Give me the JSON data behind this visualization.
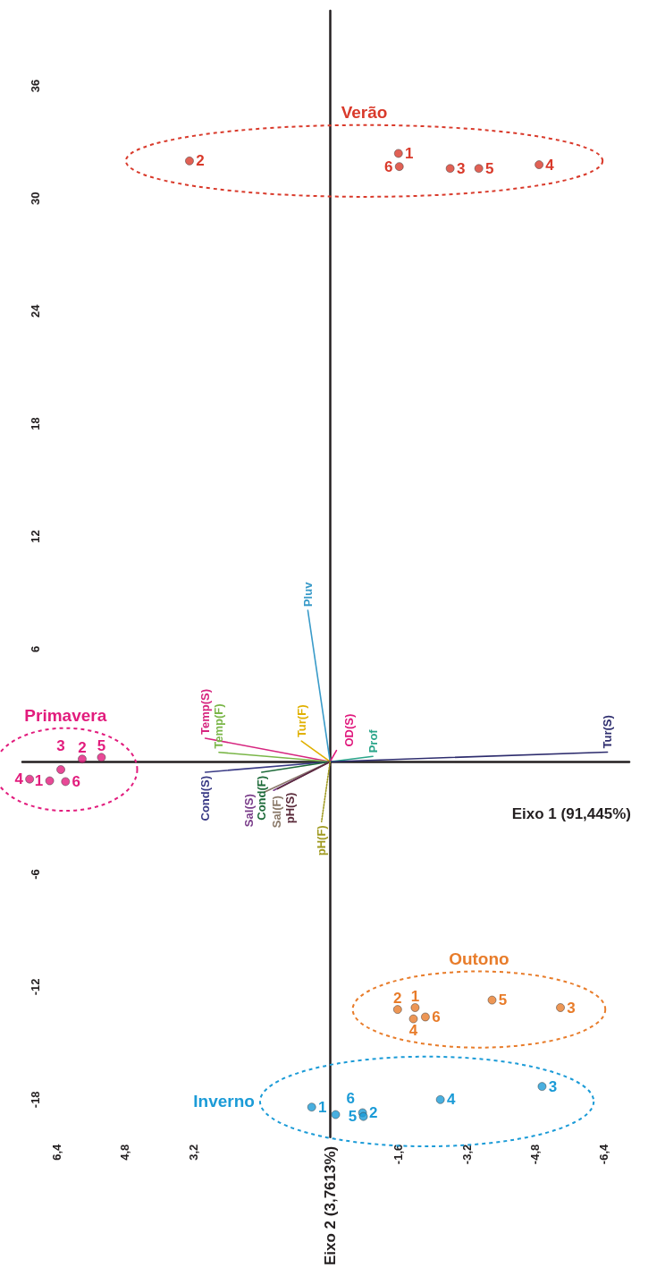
{
  "chart_data": {
    "type": "scatter",
    "xlabel": "Eixo 1 (91,445%)",
    "ylabel": "Eixo 2 (3,7613%)",
    "xlim": [
      7.2,
      -7
    ],
    "ylim": [
      -20,
      40
    ],
    "xticks": [
      {
        "value": 6.4,
        "label": "6,4"
      },
      {
        "value": 4.8,
        "label": "4,8"
      },
      {
        "value": 3.2,
        "label": "3,2"
      },
      {
        "value": -1.6,
        "label": "-1,6"
      },
      {
        "value": -3.2,
        "label": "-3,2"
      },
      {
        "value": -4.8,
        "label": "-4,8"
      },
      {
        "value": -6.4,
        "label": "-6,4"
      }
    ],
    "yticks": [
      -18,
      -12,
      -6,
      6,
      12,
      18,
      24,
      30,
      36
    ],
    "grid": false,
    "legend": false,
    "series": [
      {
        "name": "Verão",
        "color": "#d93a2b",
        "marker": "circle",
        "x": [
          -1.6,
          3.29,
          -2.81,
          -4.89,
          -3.48,
          -1.62
        ],
        "values": [
          32.4,
          32.0,
          31.6,
          31.8,
          31.6,
          31.7
        ]
      },
      {
        "name": "Primavera",
        "color": "#e21c7d",
        "marker": "circle",
        "x": [
          6.56,
          5.8,
          6.3,
          7.03,
          5.35,
          6.19
        ],
        "values": [
          -1.02,
          0.14,
          -0.42,
          -0.93,
          0.23,
          -1.06
        ]
      },
      {
        "name": "Outono",
        "color": "#e87c2a",
        "marker": "circle",
        "x": [
          -1.99,
          -1.58,
          -5.39,
          -1.95,
          -3.79,
          -2.23
        ],
        "values": [
          -13.1,
          -13.2,
          -13.1,
          -13.7,
          -12.7,
          -13.6
        ]
      },
      {
        "name": "Inverno",
        "color": "#1b9bd7",
        "marker": "circle",
        "x": [
          0.43,
          -0.76,
          -4.96,
          -2.58,
          -0.78,
          -0.13
        ],
        "values": [
          -18.4,
          -18.7,
          -17.3,
          -18.0,
          -18.9,
          -18.8
        ]
      },
      {
        "type": "line",
        "name": "Pluv",
        "color": "#3a9bc9",
        "marker": "none",
        "x": [
          0,
          0.52
        ],
        "values": [
          0,
          8.06
        ]
      },
      {
        "type": "line",
        "name": "Temp(S)",
        "color": "#d6257f",
        "marker": "none",
        "x": [
          0,
          2.92
        ],
        "values": [
          0,
          1.25
        ]
      },
      {
        "type": "line",
        "name": "Temp(F)",
        "color": "#7ab648",
        "marker": "none",
        "x": [
          0,
          2.6
        ],
        "values": [
          0,
          0.5
        ]
      },
      {
        "type": "line",
        "name": "Tur(F)",
        "color": "#e0b000",
        "marker": "none",
        "x": [
          0,
          0.67
        ],
        "values": [
          0,
          1.1
        ]
      },
      {
        "type": "line",
        "name": "OD(S)",
        "color": "#e0197d",
        "marker": "none",
        "x": [
          0,
          -0.15
        ],
        "values": [
          0,
          0.6
        ]
      },
      {
        "type": "line",
        "name": "Prof",
        "color": "#2aa58a",
        "marker": "none",
        "x": [
          0,
          -1.0
        ],
        "values": [
          0,
          0.28
        ]
      },
      {
        "type": "line",
        "name": "Tur(S)",
        "color": "#2e2d6e",
        "marker": "none",
        "x": [
          0,
          -6.49
        ],
        "values": [
          0,
          0.51
        ]
      },
      {
        "type": "line",
        "name": "Cond(S)",
        "color": "#393a85",
        "marker": "none",
        "x": [
          0,
          2.92
        ],
        "values": [
          0,
          -0.56
        ]
      },
      {
        "type": "line",
        "name": "Cond(F)",
        "color": "#1e6b3a",
        "marker": "none",
        "x": [
          0,
          1.6
        ],
        "values": [
          0,
          -0.56
        ]
      },
      {
        "type": "line",
        "name": "Sal(F)",
        "color": "#8b7a6a",
        "marker": "none",
        "x": [
          0,
          1.54
        ],
        "values": [
          0,
          -1.62
        ]
      },
      {
        "type": "line",
        "name": "Sal(S)",
        "color": "#7a3d8a",
        "marker": "none",
        "x": [
          0,
          1.32
        ],
        "values": [
          0,
          -1.53
        ]
      },
      {
        "type": "line",
        "name": "pH(S)",
        "color": "#5a2a3a",
        "marker": "none",
        "x": [
          0,
          1.23
        ],
        "values": [
          0,
          -1.45
        ]
      },
      {
        "type": "line",
        "name": "pH(F)",
        "color": "#a09a20",
        "marker": "none",
        "line_style": "dotted",
        "x": [
          0,
          0.2
        ],
        "values": [
          0,
          -3.2
        ]
      }
    ],
    "annotations": [
      {
        "text": "1",
        "x": -1.6,
        "y": 32.4
      },
      {
        "text": "2",
        "x": 3.29,
        "y": 32.0
      },
      {
        "text": "3",
        "x": -2.81,
        "y": 31.6
      },
      {
        "text": "4",
        "x": -4.89,
        "y": 31.8
      },
      {
        "text": "5",
        "x": -3.48,
        "y": 31.6
      },
      {
        "text": "6",
        "x": -1.62,
        "y": 31.7
      },
      {
        "text": "1",
        "x": 6.56,
        "y": -1.02
      },
      {
        "text": "2",
        "x": 5.8,
        "y": 0.14
      },
      {
        "text": "3",
        "x": 6.3,
        "y": -0.42
      },
      {
        "text": "4",
        "x": 7.03,
        "y": -0.93
      },
      {
        "text": "5",
        "x": 5.35,
        "y": 0.23
      },
      {
        "text": "6",
        "x": 6.19,
        "y": -1.06
      },
      {
        "text": "1",
        "x": -1.99,
        "y": -13.1
      },
      {
        "text": "2",
        "x": -1.58,
        "y": -13.2
      },
      {
        "text": "3",
        "x": -5.39,
        "y": -13.1
      },
      {
        "text": "4",
        "x": -1.95,
        "y": -13.7
      },
      {
        "text": "5",
        "x": -3.79,
        "y": -12.7
      },
      {
        "text": "6",
        "x": -2.23,
        "y": -13.6
      },
      {
        "text": "1",
        "x": 0.43,
        "y": -18.4
      },
      {
        "text": "2",
        "x": -0.76,
        "y": -18.7
      },
      {
        "text": "3",
        "x": -4.96,
        "y": -17.3
      },
      {
        "text": "4",
        "x": -2.58,
        "y": -18.0
      },
      {
        "text": "5",
        "x": -0.78,
        "y": -18.9
      },
      {
        "text": "6",
        "x": -0.13,
        "y": -18.8
      }
    ]
  }
}
